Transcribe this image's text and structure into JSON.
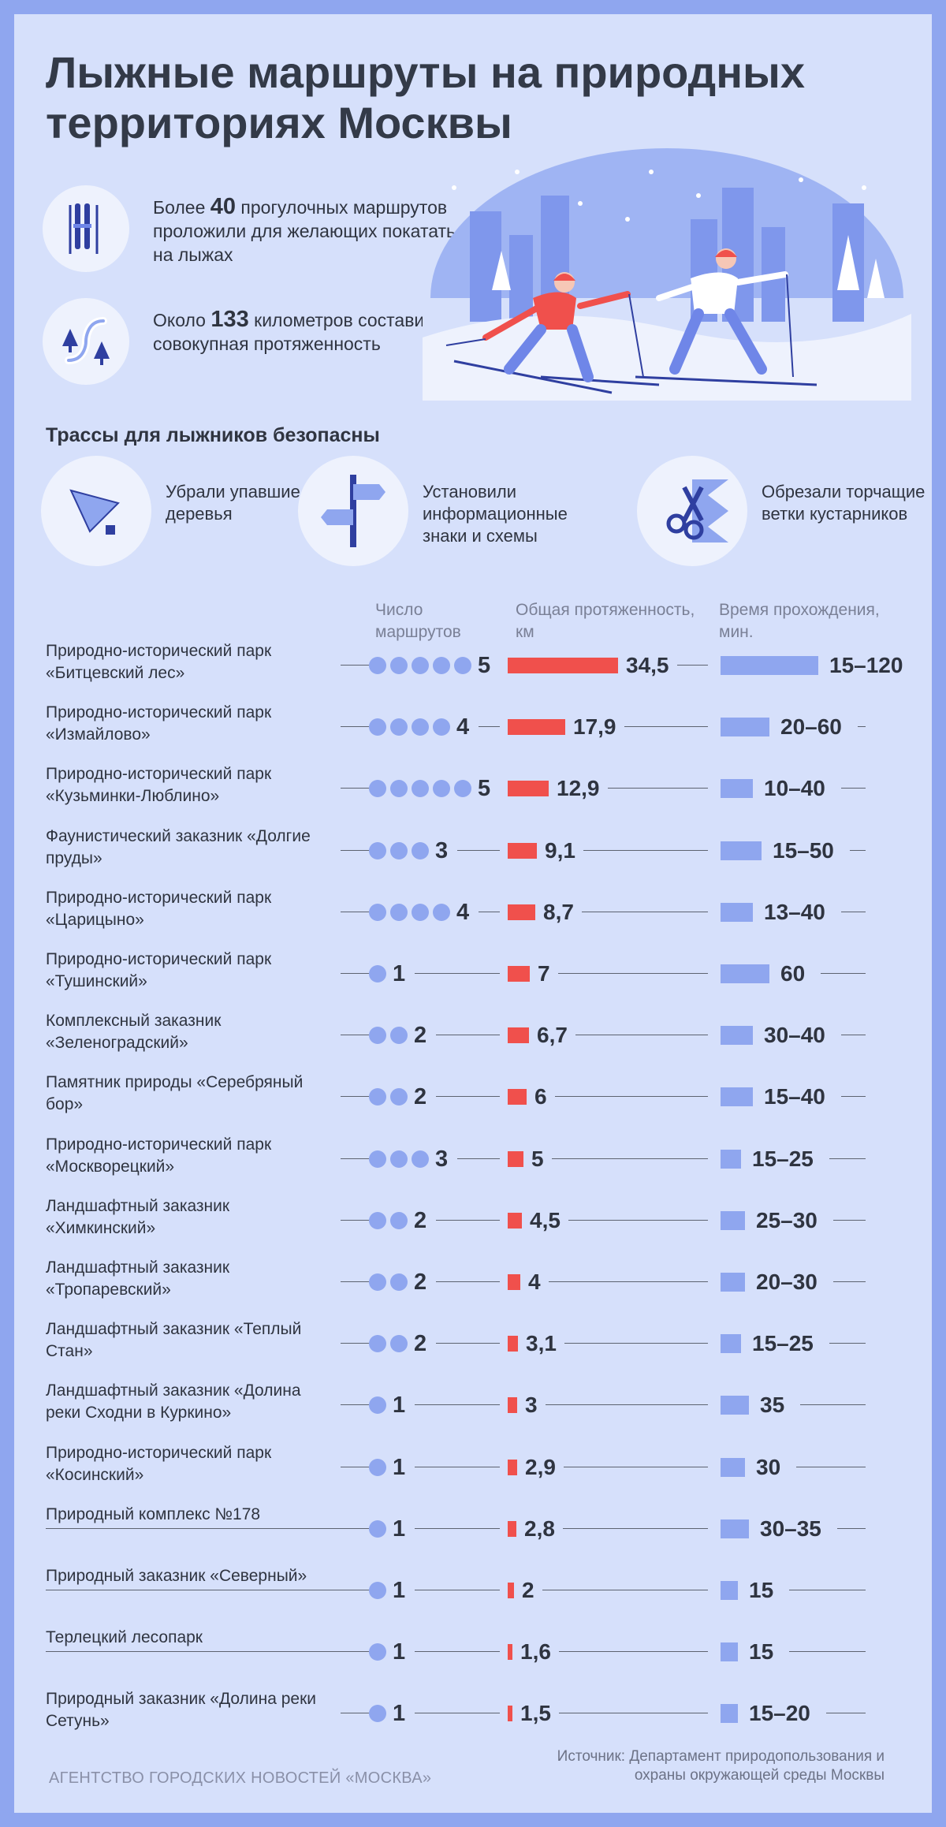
{
  "title": "Лыжные маршруты на природных территориях Москвы",
  "facts": [
    {
      "prefix": "Более ",
      "number": "40",
      "suffix": " прогулочных маршрутов проложили для желающих покататься на лыжах",
      "icon": "skis-icon"
    },
    {
      "prefix": "Около ",
      "number": "133",
      "suffix": " километров составила их совокупная протяженность",
      "icon": "route-icon"
    }
  ],
  "safety": {
    "heading": "Трассы для лыжников безопасны",
    "items": [
      {
        "text": "Убрали упавшие деревья",
        "icon": "fallen-tree-icon"
      },
      {
        "text": "Установили информационные знаки и схемы",
        "icon": "signpost-icon"
      },
      {
        "text": "Обрезали торчащие ветки кустарников",
        "icon": "scissors-icon"
      }
    ]
  },
  "columns": {
    "count": "Число маршрутов",
    "length": "Общая протяженность, км",
    "time": "Время прохождения, мин."
  },
  "colors": {
    "background": "#d6e0fb",
    "border": "#8fa6ef",
    "count_dot": "#8fa6ef",
    "length_bar": "#f0504c",
    "time_bar": "#8fa6ef",
    "text": "#2f3440"
  },
  "chart_data": {
    "type": "table",
    "rows": [
      {
        "name": "Природно-исторический парк «Битцевский лес»",
        "routes": 5,
        "length_km": 34.5,
        "length_label": "34,5",
        "time_min": [
          15,
          120
        ],
        "time_label": "15–120"
      },
      {
        "name": "Природно-исторический парк «Измайлово»",
        "routes": 4,
        "length_km": 17.9,
        "length_label": "17,9",
        "time_min": [
          20,
          60
        ],
        "time_label": "20–60"
      },
      {
        "name": "Природно-исторический парк «Кузьминки-Люблино»",
        "routes": 5,
        "length_km": 12.9,
        "length_label": "12,9",
        "time_min": [
          10,
          40
        ],
        "time_label": "10–40"
      },
      {
        "name": "Фаунистический заказник «Долгие пруды»",
        "routes": 3,
        "length_km": 9.1,
        "length_label": "9,1",
        "time_min": [
          15,
          50
        ],
        "time_label": "15–50"
      },
      {
        "name": "Природно-исторический парк «Царицыно»",
        "routes": 4,
        "length_km": 8.7,
        "length_label": "8,7",
        "time_min": [
          13,
          40
        ],
        "time_label": "13–40"
      },
      {
        "name": "Природно-исторический парк «Тушинский»",
        "routes": 1,
        "length_km": 7,
        "length_label": "7",
        "time_min": [
          60,
          60
        ],
        "time_label": "60"
      },
      {
        "name": "Комплексный заказник «Зеленоградский»",
        "routes": 2,
        "length_km": 6.7,
        "length_label": "6,7",
        "time_min": [
          30,
          40
        ],
        "time_label": "30–40"
      },
      {
        "name": "Памятник природы «Серебряный бор»",
        "routes": 2,
        "length_km": 6,
        "length_label": "6",
        "time_min": [
          15,
          40
        ],
        "time_label": "15–40"
      },
      {
        "name": "Природно-исторический парк «Москворецкий»",
        "routes": 3,
        "length_km": 5,
        "length_label": "5",
        "time_min": [
          15,
          25
        ],
        "time_label": "15–25"
      },
      {
        "name": "Ландшафтный заказник «Химкинский»",
        "routes": 2,
        "length_km": 4.5,
        "length_label": "4,5",
        "time_min": [
          25,
          30
        ],
        "time_label": "25–30"
      },
      {
        "name": "Ландшафтный заказник «Тропаревский»",
        "routes": 2,
        "length_km": 4,
        "length_label": "4",
        "time_min": [
          20,
          30
        ],
        "time_label": "20–30"
      },
      {
        "name": "Ландшафтный заказник «Теплый Стан»",
        "routes": 2,
        "length_km": 3.1,
        "length_label": "3,1",
        "time_min": [
          15,
          25
        ],
        "time_label": "15–25"
      },
      {
        "name": "Ландшафтный заказник «Долина реки Сходни в Куркино»",
        "routes": 1,
        "length_km": 3,
        "length_label": "3",
        "time_min": [
          35,
          35
        ],
        "time_label": "35"
      },
      {
        "name": "Природно-исторический парк «Косинский»",
        "routes": 1,
        "length_km": 2.9,
        "length_label": "2,9",
        "time_min": [
          30,
          30
        ],
        "time_label": "30"
      },
      {
        "name": "Природный комплекс №178",
        "routes": 1,
        "length_km": 2.8,
        "length_label": "2,8",
        "time_min": [
          30,
          35
        ],
        "time_label": "30–35"
      },
      {
        "name": "Природный заказник «Северный»",
        "routes": 1,
        "length_km": 2,
        "length_label": "2",
        "time_min": [
          15,
          15
        ],
        "time_label": "15"
      },
      {
        "name": "Терлецкий лесопарк",
        "routes": 1,
        "length_km": 1.6,
        "length_label": "1,6",
        "time_min": [
          15,
          15
        ],
        "time_label": "15"
      },
      {
        "name": "Природный заказник «Долина реки Сетунь»",
        "routes": 1,
        "length_km": 1.5,
        "length_label": "1,5",
        "time_min": [
          15,
          20
        ],
        "time_label": "15–20"
      }
    ]
  },
  "footer": {
    "agency": "АГЕНТСТВО ГОРОДСКИХ НОВОСТЕЙ «МОСКВА»",
    "source": "Источник: Департамент природопользования и охраны окружающей среды Москвы"
  }
}
